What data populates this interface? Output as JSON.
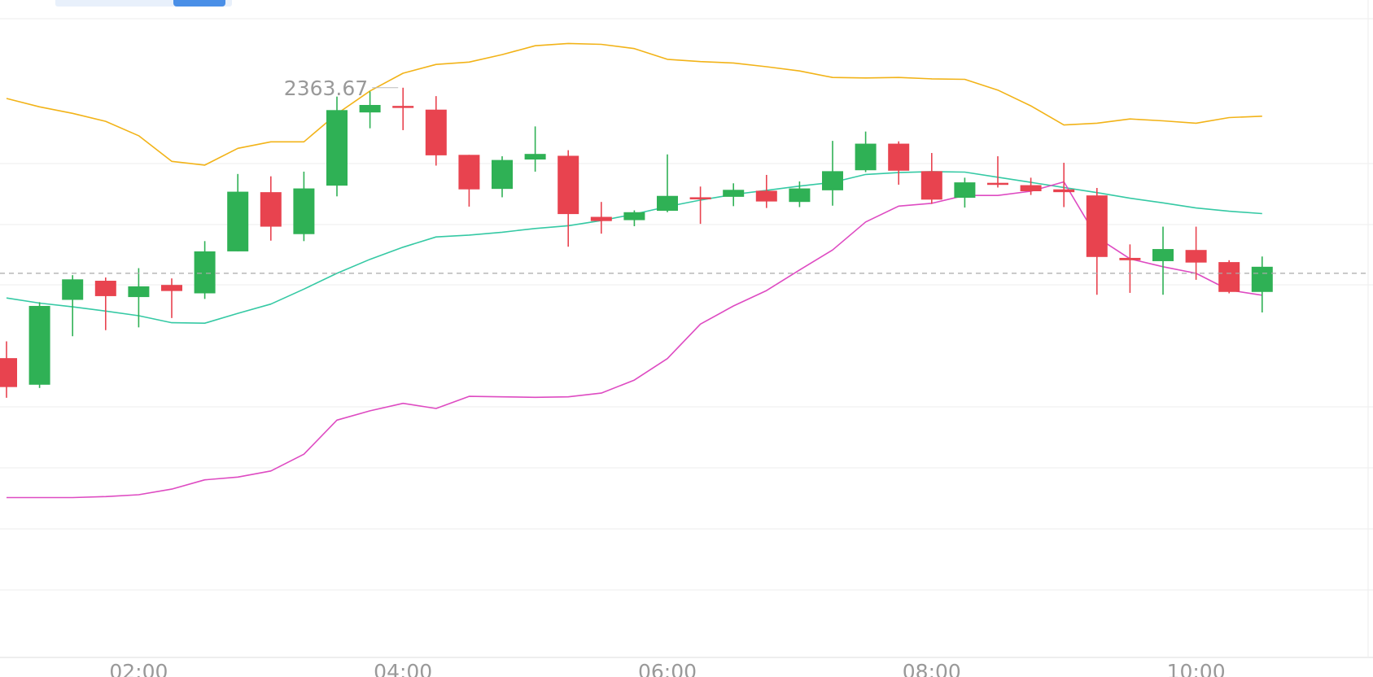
{
  "colors": {
    "up": "#2fb155",
    "down": "#e8434f",
    "upper_band": "#f2b318",
    "middle_band": "#35c9a4",
    "lower_band": "#de4bc2",
    "grid": "#eeeeee",
    "axis_text": "#999999",
    "crosshair": "#aaaaaa",
    "range_track": "#e8f0fb",
    "range_thumb": "#4a8fe7"
  },
  "chart_data": {
    "type": "candlestick",
    "ylim": [
      2241.5,
      2378.5
    ],
    "x_ticks": [
      "02:00",
      "04:00",
      "06:00",
      "08:00",
      "10:00"
    ],
    "x_tick_index": [
      4,
      12,
      20,
      28,
      36
    ],
    "max_label": "2363.67",
    "max_label_index": 12,
    "crosshair_value": 2323.9,
    "grid": true,
    "candles": [
      {
        "o": 2305.7,
        "c": 2299.5,
        "h": 2309.3,
        "l": 2297.2
      },
      {
        "o": 2300.0,
        "c": 2316.9,
        "h": 2317.7,
        "l": 2299.3
      },
      {
        "o": 2318.2,
        "c": 2322.6,
        "h": 2323.5,
        "l": 2310.4
      },
      {
        "o": 2322.3,
        "c": 2319.0,
        "h": 2323.0,
        "l": 2311.7
      },
      {
        "o": 2318.8,
        "c": 2321.1,
        "h": 2325.0,
        "l": 2312.3
      },
      {
        "o": 2321.4,
        "c": 2320.1,
        "h": 2322.8,
        "l": 2314.3
      },
      {
        "o": 2319.6,
        "c": 2328.6,
        "h": 2330.8,
        "l": 2318.4
      },
      {
        "o": 2328.6,
        "c": 2341.4,
        "h": 2345.2,
        "l": 2328.6
      },
      {
        "o": 2341.3,
        "c": 2333.9,
        "h": 2344.7,
        "l": 2330.9
      },
      {
        "o": 2332.3,
        "c": 2342.1,
        "h": 2345.7,
        "l": 2330.8
      },
      {
        "o": 2342.7,
        "c": 2358.9,
        "h": 2361.8,
        "l": 2340.4
      },
      {
        "o": 2358.4,
        "c": 2360.0,
        "h": 2362.9,
        "l": 2355.0
      },
      {
        "o": 2359.8,
        "c": 2359.4,
        "h": 2363.7,
        "l": 2354.6
      },
      {
        "o": 2359.0,
        "c": 2349.2,
        "h": 2361.9,
        "l": 2347.0
      },
      {
        "o": 2349.3,
        "c": 2341.9,
        "h": 2349.3,
        "l": 2338.2
      },
      {
        "o": 2342.0,
        "c": 2348.2,
        "h": 2349.0,
        "l": 2340.2
      },
      {
        "o": 2348.3,
        "c": 2349.5,
        "h": 2355.4,
        "l": 2345.7
      },
      {
        "o": 2349.1,
        "c": 2336.6,
        "h": 2350.3,
        "l": 2329.6
      },
      {
        "o": 2336.0,
        "c": 2335.1,
        "h": 2339.2,
        "l": 2332.4
      },
      {
        "o": 2335.3,
        "c": 2337.0,
        "h": 2337.4,
        "l": 2334.0
      },
      {
        "o": 2337.3,
        "c": 2340.5,
        "h": 2349.4,
        "l": 2337.0
      },
      {
        "o": 2340.2,
        "c": 2340.1,
        "h": 2342.5,
        "l": 2334.5
      },
      {
        "o": 2340.3,
        "c": 2341.8,
        "h": 2343.2,
        "l": 2338.3
      },
      {
        "o": 2341.6,
        "c": 2339.3,
        "h": 2345.0,
        "l": 2337.9
      },
      {
        "o": 2339.2,
        "c": 2342.1,
        "h": 2343.6,
        "l": 2338.1
      },
      {
        "o": 2341.7,
        "c": 2345.8,
        "h": 2352.3,
        "l": 2338.4
      },
      {
        "o": 2346.0,
        "c": 2351.7,
        "h": 2354.3,
        "l": 2345.6
      },
      {
        "o": 2351.7,
        "c": 2345.9,
        "h": 2352.2,
        "l": 2342.9
      },
      {
        "o": 2345.8,
        "c": 2339.7,
        "h": 2349.7,
        "l": 2338.8
      },
      {
        "o": 2340.1,
        "c": 2343.4,
        "h": 2344.4,
        "l": 2338.0
      },
      {
        "o": 2343.3,
        "c": 2343.2,
        "h": 2349.0,
        "l": 2342.3
      },
      {
        "o": 2342.8,
        "c": 2341.5,
        "h": 2344.4,
        "l": 2340.7
      },
      {
        "o": 2341.9,
        "c": 2341.3,
        "h": 2347.6,
        "l": 2338.1
      },
      {
        "o": 2340.6,
        "c": 2327.4,
        "h": 2342.2,
        "l": 2319.3
      },
      {
        "o": 2327.2,
        "c": 2326.7,
        "h": 2330.1,
        "l": 2319.7
      },
      {
        "o": 2326.5,
        "c": 2329.1,
        "h": 2333.9,
        "l": 2319.3
      },
      {
        "o": 2328.9,
        "c": 2326.2,
        "h": 2333.9,
        "l": 2322.5
      },
      {
        "o": 2326.3,
        "c": 2319.9,
        "h": 2326.7,
        "l": 2319.6
      },
      {
        "o": 2319.9,
        "c": 2325.3,
        "h": 2327.5,
        "l": 2315.5
      }
    ],
    "upper_band": [
      2361.4,
      2359.6,
      2358.2,
      2356.5,
      2353.4,
      2347.9,
      2347.1,
      2350.7,
      2352.1,
      2352.1,
      2358.1,
      2363.0,
      2366.8,
      2368.7,
      2369.2,
      2370.8,
      2372.7,
      2373.2,
      2373.0,
      2372.1,
      2369.8,
      2369.3,
      2369.0,
      2368.2,
      2367.3,
      2365.9,
      2365.8,
      2365.9,
      2365.6,
      2365.5,
      2363.2,
      2359.8,
      2355.7,
      2356.1,
      2357.0,
      2356.6,
      2356.1,
      2357.3,
      2357.6
    ],
    "middle_band": [
      2318.6,
      2317.5,
      2316.7,
      2315.8,
      2314.8,
      2313.3,
      2313.2,
      2315.3,
      2317.3,
      2320.5,
      2323.9,
      2326.9,
      2329.5,
      2331.7,
      2332.1,
      2332.7,
      2333.5,
      2334.1,
      2335.2,
      2336.6,
      2338.2,
      2339.6,
      2340.8,
      2341.7,
      2342.6,
      2343.4,
      2345.1,
      2345.5,
      2345.7,
      2345.6,
      2344.5,
      2343.4,
      2342.3,
      2341.2,
      2340.0,
      2339.0,
      2337.9,
      2337.2,
      2336.7
    ],
    "lower_band": [
      2275.8,
      2275.8,
      2275.8,
      2276.0,
      2276.4,
      2277.6,
      2279.6,
      2280.2,
      2281.5,
      2285.1,
      2292.4,
      2294.4,
      2296.0,
      2294.9,
      2297.5,
      2297.4,
      2297.3,
      2297.4,
      2298.2,
      2301.0,
      2305.6,
      2313.0,
      2316.9,
      2320.2,
      2324.6,
      2328.9,
      2334.9,
      2338.3,
      2338.9,
      2340.6,
      2340.6,
      2341.5,
      2343.5,
      2331.6,
      2327.0,
      2325.3,
      2323.9,
      2320.3,
      2319.2
    ]
  }
}
